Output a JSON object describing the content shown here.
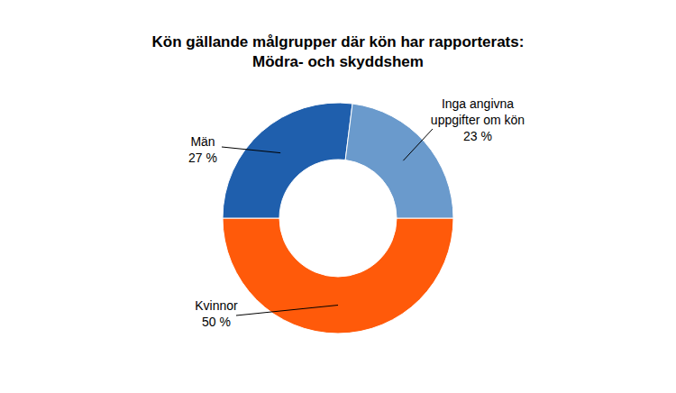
{
  "chart_data": {
    "type": "donut",
    "title": "Kön gällande målgrupper där kön har rapporterats: Mödra- och skyddshem",
    "categories": [
      "Kvinnor",
      "Män",
      "Inga angivna uppgifter om kön"
    ],
    "values": [
      50,
      27,
      23
    ],
    "value_labels": [
      "50 %",
      "27 %",
      "23 %"
    ],
    "colors": [
      "#ff5a0a",
      "#1f5fad",
      "#6a9acc"
    ],
    "data_labels": true
  }
}
